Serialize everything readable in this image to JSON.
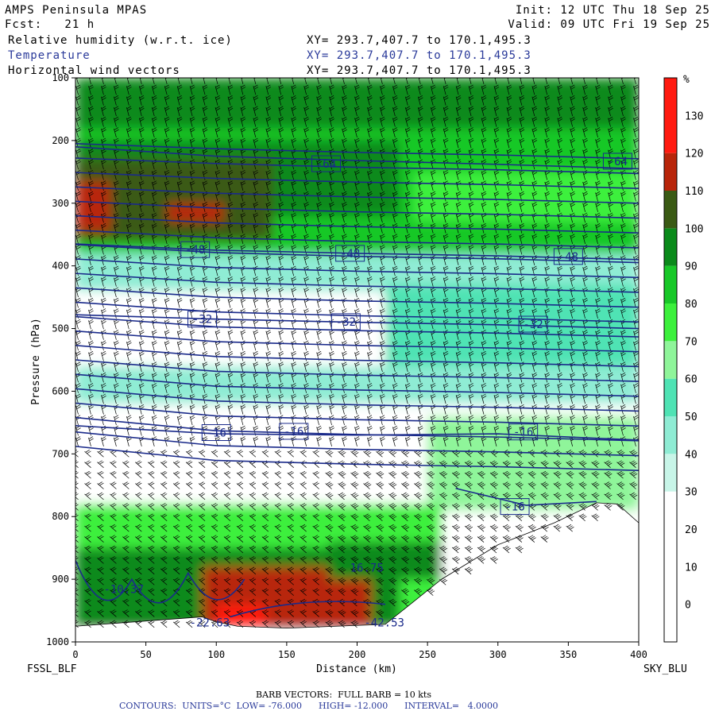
{
  "header": {
    "model": "AMPS Peninsula MPAS",
    "forecast": "Fcst:   21 h",
    "init": "Init: 12 UTC Thu 18 Sep 25",
    "valid": "Valid: 09 UTC Fri 19 Sep 25",
    "fields": [
      {
        "name": "Relative humidity (w.r.t. ice)",
        "xy": "XY= 293.7,407.7 to 170.1,495.3",
        "color": "#000000"
      },
      {
        "name": "Temperature",
        "xy": "XY= 293.7,407.7 to 170.1,495.3",
        "color": "#2a3a9a"
      },
      {
        "name": "Horizontal wind vectors",
        "xy": "XY= 293.7,407.7 to 170.1,495.3",
        "color": "#000000"
      }
    ]
  },
  "endpoints": {
    "left": "FSSL_BLF",
    "right": "SKY_BLU"
  },
  "footer": {
    "barb": "BARB VECTORS:  FULL BARB = 10 kts",
    "contours": "CONTOURS:  UNITS=°C  LOW= -76.000      HIGH= -12.000      INTERVAL=   4.0000"
  },
  "chart_data": {
    "type": "heatmap",
    "xlabel": "Distance (km)",
    "ylabel": "Pressure (hPa)",
    "xlim": [
      0,
      400
    ],
    "ylim": [
      1000,
      100
    ],
    "x_ticks": [
      0,
      50,
      100,
      150,
      200,
      250,
      300,
      350,
      400
    ],
    "y_ticks": [
      100,
      200,
      300,
      400,
      500,
      600,
      700,
      800,
      900,
      1000
    ],
    "colorbar": {
      "unit": "%",
      "ticks": [
        0,
        10,
        20,
        30,
        40,
        50,
        60,
        70,
        80,
        90,
        100,
        110,
        120,
        130
      ],
      "levels": [
        {
          "from": -10,
          "to": 0,
          "color": "#ffffff"
        },
        {
          "from": 0,
          "to": 10,
          "color": "#ffffff"
        },
        {
          "from": 10,
          "to": 20,
          "color": "#ffffff"
        },
        {
          "from": 20,
          "to": 30,
          "color": "#ffffff"
        },
        {
          "from": 30,
          "to": 40,
          "color": "#c8f5e8"
        },
        {
          "from": 40,
          "to": 50,
          "color": "#8fecd4"
        },
        {
          "from": 50,
          "to": 60,
          "color": "#4fe3b4"
        },
        {
          "from": 60,
          "to": 70,
          "color": "#8ff59a"
        },
        {
          "from": 70,
          "to": 80,
          "color": "#3cf03c"
        },
        {
          "from": 80,
          "to": 90,
          "color": "#18c828"
        },
        {
          "from": 90,
          "to": 100,
          "color": "#0a8a1a"
        },
        {
          "from": 100,
          "to": 110,
          "color": "#3a5a14"
        },
        {
          "from": 110,
          "to": 120,
          "color": "#b8250a"
        },
        {
          "from": 120,
          "to": 140,
          "color": "#ff1a10"
        }
      ]
    },
    "temperature_contours": [
      {
        "label": "-64",
        "points": [
          [
            0,
            210
          ],
          [
            100,
            225
          ],
          [
            200,
            232
          ],
          [
            300,
            238
          ],
          [
            400,
            245
          ]
        ],
        "label_at": [
          [
            178,
            237
          ],
          [
            385,
            233
          ]
        ]
      },
      {
        "label": "-48",
        "points": [
          [
            0,
            365
          ],
          [
            100,
            375
          ],
          [
            200,
            380
          ],
          [
            300,
            384
          ],
          [
            400,
            390
          ]
        ],
        "label_at": [
          [
            85,
            374
          ],
          [
            195,
            380
          ],
          [
            350,
            385
          ]
        ]
      },
      {
        "label": "-32",
        "points": [
          [
            0,
            478
          ],
          [
            100,
            485
          ],
          [
            200,
            490
          ],
          [
            300,
            494
          ],
          [
            400,
            500
          ]
        ],
        "label_at": [
          [
            90,
            485
          ],
          [
            192,
            489
          ],
          [
            325,
            493
          ]
        ]
      },
      {
        "label": "-16",
        "points": [
          [
            0,
            655
          ],
          [
            100,
            668
          ],
          [
            200,
            670
          ],
          [
            300,
            668
          ],
          [
            400,
            678
          ]
        ],
        "label_at": [
          [
            100,
            666
          ],
          [
            155,
            664
          ],
          [
            318,
            665
          ]
        ]
      },
      {
        "label": "-16",
        "points": [
          [
            270,
            755
          ],
          [
            320,
            782
          ],
          [
            370,
            776
          ]
        ],
        "label_at": [
          [
            312,
            784
          ]
        ]
      }
    ],
    "extrema_labels": [
      {
        "label": "-10.37",
        "x": 20,
        "y": 922
      },
      {
        "label": "16.75",
        "x": 195,
        "y": 888
      },
      {
        "label": "-22.63",
        "x": 81,
        "y": 975
      },
      {
        "label": "-42.53",
        "x": 205,
        "y": 975
      }
    ],
    "terrain": [
      [
        0,
        975
      ],
      [
        30,
        970
      ],
      [
        90,
        960
      ],
      [
        100,
        968
      ],
      [
        115,
        975
      ],
      [
        150,
        978
      ],
      [
        220,
        972
      ],
      [
        260,
        900
      ],
      [
        300,
        845
      ],
      [
        340,
        810
      ],
      [
        370,
        778
      ],
      [
        385,
        780
      ],
      [
        400,
        810
      ]
    ],
    "wind_barbs": "dense westerly barbs throughout the cross-section; stronger (25–40 kts) near the surface slope between 200–400 km"
  }
}
